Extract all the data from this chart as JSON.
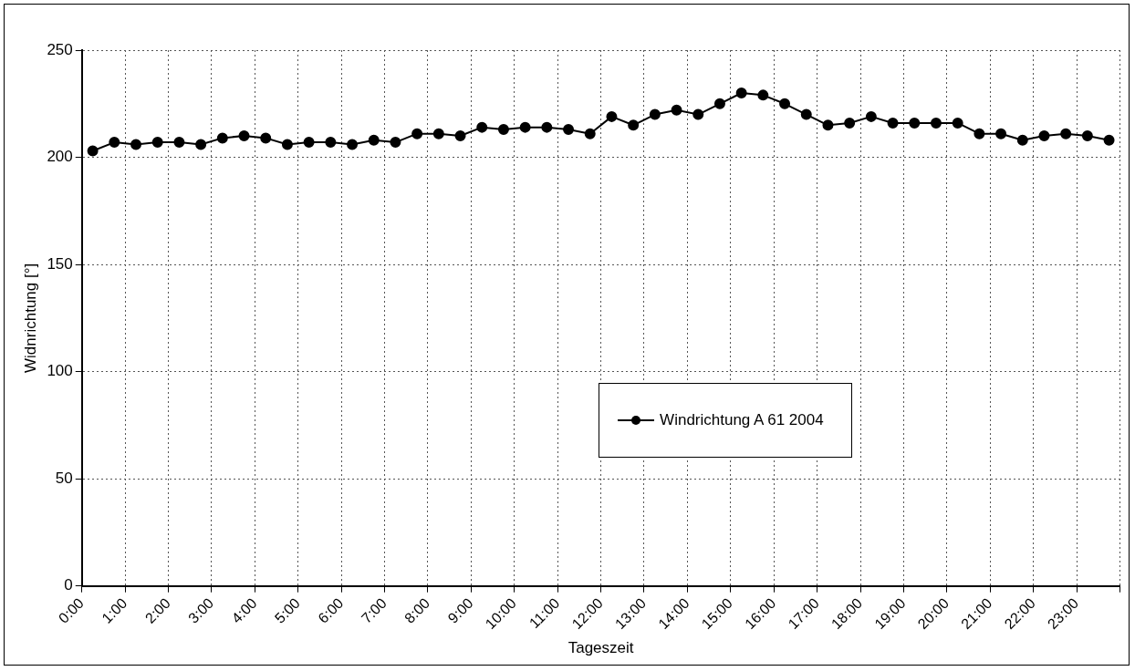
{
  "chart_data": {
    "type": "line",
    "xlabel": "Tageszeit",
    "ylabel": "Widnrichtung [°]",
    "x": [
      0.25,
      0.75,
      1.25,
      1.75,
      2.25,
      2.75,
      3.25,
      3.75,
      4.25,
      4.75,
      5.25,
      5.75,
      6.25,
      6.75,
      7.25,
      7.75,
      8.25,
      8.75,
      9.25,
      9.75,
      10.25,
      10.75,
      11.25,
      11.75,
      12.25,
      12.75,
      13.25,
      13.75,
      14.25,
      14.75,
      15.25,
      15.75,
      16.25,
      16.75,
      17.25,
      17.75,
      18.25,
      18.75,
      19.25,
      19.75,
      20.25,
      20.75,
      21.25,
      21.75,
      22.25,
      22.75,
      23.25,
      23.75
    ],
    "series": [
      {
        "name": "Windrichtung A 61 2004",
        "color": "#000000",
        "values": [
          203,
          207,
          206,
          207,
          207,
          206,
          209,
          210,
          209,
          206,
          207,
          207,
          206,
          208,
          207,
          211,
          211,
          210,
          214,
          213,
          214,
          214,
          213,
          211,
          219,
          215,
          220,
          222,
          220,
          225,
          230,
          229,
          225,
          220,
          215,
          216,
          219,
          216,
          216,
          216,
          216,
          211,
          211,
          208,
          210,
          211,
          210,
          208
        ]
      }
    ],
    "xlim": [
      0,
      24
    ],
    "xticks": [
      {
        "value": 0,
        "label": "0:00"
      },
      {
        "value": 1,
        "label": "1:00"
      },
      {
        "value": 2,
        "label": "2:00"
      },
      {
        "value": 3,
        "label": "3:00"
      },
      {
        "value": 4,
        "label": "4:00"
      },
      {
        "value": 5,
        "label": "5:00"
      },
      {
        "value": 6,
        "label": "6:00"
      },
      {
        "value": 7,
        "label": "7:00"
      },
      {
        "value": 8,
        "label": "8:00"
      },
      {
        "value": 9,
        "label": "9:00"
      },
      {
        "value": 10,
        "label": "10:00"
      },
      {
        "value": 11,
        "label": "11:00"
      },
      {
        "value": 12,
        "label": "12:00"
      },
      {
        "value": 13,
        "label": "13:00"
      },
      {
        "value": 14,
        "label": "14:00"
      },
      {
        "value": 15,
        "label": "15:00"
      },
      {
        "value": 16,
        "label": "16:00"
      },
      {
        "value": 17,
        "label": "17:00"
      },
      {
        "value": 18,
        "label": "18:00"
      },
      {
        "value": 19,
        "label": "19:00"
      },
      {
        "value": 20,
        "label": "20:00"
      },
      {
        "value": 21,
        "label": "21:00"
      },
      {
        "value": 22,
        "label": "22:00"
      },
      {
        "value": 23,
        "label": "23:00"
      },
      {
        "value": 24,
        "label": null
      }
    ],
    "ylim": [
      0,
      250
    ],
    "yticks": [
      0,
      50,
      100,
      150,
      200,
      250
    ],
    "grid": true,
    "legend": "center",
    "marker": "circle",
    "line_style": "solid"
  }
}
